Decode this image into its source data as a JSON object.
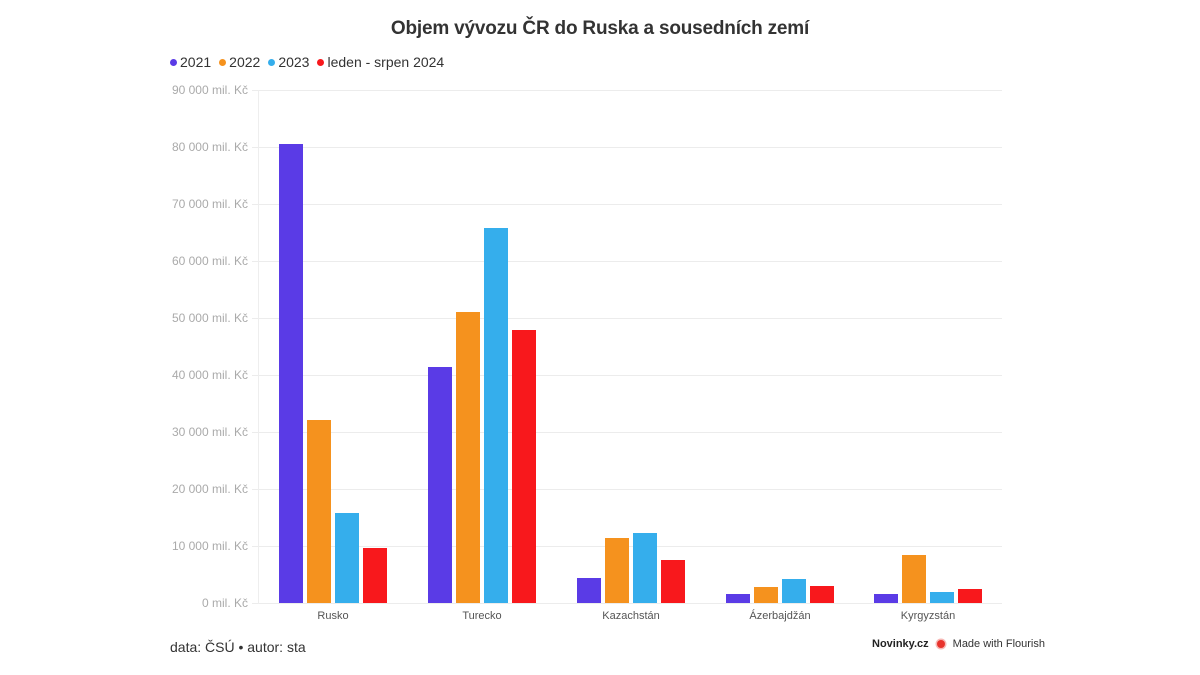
{
  "chart_data": {
    "type": "bar",
    "title": "Objem vývozu ČR do Ruska a sousedních zemí",
    "xlabel": "",
    "ylabel": "",
    "ylim": [
      0,
      90000
    ],
    "y_ticks": [
      "0 mil. Kč",
      "10 000 mil. Kč",
      "20 000 mil. Kč",
      "30 000 mil. Kč",
      "40 000 mil. Kč",
      "50 000 mil. Kč",
      "60 000 mil. Kč",
      "70 000 mil. Kč",
      "80 000 mil. Kč",
      "90 000 mil. Kč"
    ],
    "y_tick_values": [
      0,
      10000,
      20000,
      30000,
      40000,
      50000,
      60000,
      70000,
      80000,
      90000
    ],
    "grid": true,
    "legend_position": "top-left",
    "categories": [
      "Rusko",
      "Turecko",
      "Kazachstán",
      "Ázerbajdžán",
      "Kyrgyzstán"
    ],
    "series": [
      {
        "name": "2021",
        "color": "#5a3be6",
        "values": [
          80500,
          41400,
          4400,
          1600,
          1600
        ]
      },
      {
        "name": "2022",
        "color": "#f5921e",
        "values": [
          32100,
          51000,
          11400,
          2800,
          8400
        ]
      },
      {
        "name": "2023",
        "color": "#35aeec",
        "values": [
          15800,
          65800,
          12300,
          4200,
          1900
        ]
      },
      {
        "name": "leden - srpen 2024",
        "color": "#f8181c",
        "values": [
          9600,
          47900,
          7500,
          3000,
          2500
        ]
      }
    ]
  },
  "footer": {
    "source": "data: ČSÚ • autor: sta",
    "brand": "Novinky.cz",
    "made_with": "Made with Flourish"
  }
}
